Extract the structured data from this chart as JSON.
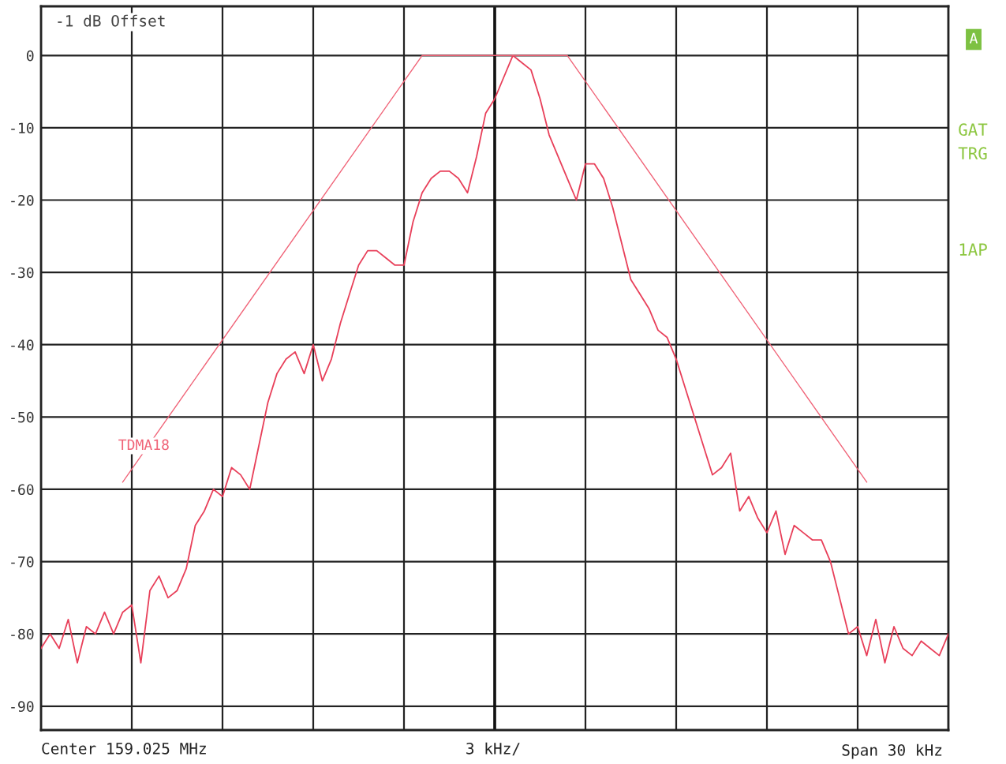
{
  "chart_data": {
    "type": "line",
    "annotations": [
      "-1 dB Offset",
      "A",
      "GAT",
      "TRG",
      "1AP",
      "Center 159.025 MHz",
      "3 kHz/",
      "Span 30 kHz"
    ],
    "categories": [
      null,
      null,
      null,
      null,
      null,
      null,
      null,
      null,
      null,
      null,
      null,
      null,
      null,
      null,
      null,
      null,
      null,
      null,
      null,
      null,
      null,
      null,
      null,
      null,
      null,
      null,
      null,
      null,
      null,
      null,
      null,
      null,
      null,
      null,
      null,
      null,
      null,
      null,
      null,
      null,
      null,
      null,
      null,
      null,
      null,
      null,
      null,
      null,
      null,
      null,
      null,
      null,
      null,
      null,
      null,
      null,
      null,
      null,
      null,
      null,
      null,
      null,
      null,
      null,
      null,
      null,
      null,
      null,
      null,
      null,
      null,
      null,
      null,
      null,
      null,
      null,
      null,
      null,
      null,
      null,
      null,
      null,
      null,
      null,
      null,
      null,
      null,
      null,
      null,
      null,
      null,
      null,
      null,
      null,
      null,
      null,
      null,
      null,
      null,
      null,
      null
    ],
    "series": [
      {
        "color": "#e8405a",
        "values": [
          -82,
          -80,
          -82,
          -78,
          -84,
          -79,
          -80,
          -77,
          -80,
          -77,
          -76,
          -84,
          -74,
          -72,
          -75,
          -74,
          -71,
          -65,
          -63,
          -60,
          -61,
          -57,
          -58,
          -60,
          -54,
          -48,
          -44,
          -42,
          -41,
          -44,
          -40,
          -45,
          -42,
          -37,
          -33,
          -29,
          -27,
          -27,
          -28,
          -29,
          -29,
          -23,
          -19,
          -17,
          -16,
          -16,
          -17,
          -19,
          -14,
          -8,
          -6,
          -3,
          0,
          -1,
          -2,
          -6,
          -11,
          -14,
          -17,
          -20,
          -15,
          -15,
          -17,
          -21,
          -26,
          -31,
          -33,
          -35,
          -38,
          -39,
          -42,
          -46,
          -50,
          -54,
          -58,
          -57,
          -55,
          -63,
          -61,
          -64,
          -66,
          -63,
          -69,
          -65,
          -66,
          -67,
          -67,
          -70,
          -75,
          -80,
          -79,
          -83,
          -78,
          -84,
          -79,
          -82,
          -83,
          -81,
          -82,
          -83,
          -80
        ]
      },
      {
        "name": "TDMA18",
        "color": "#f06478",
        "values": [
          null,
          null,
          null,
          null,
          null,
          null,
          null,
          null,
          null,
          -59,
          null,
          null,
          null,
          null,
          null,
          null,
          null,
          null,
          null,
          null,
          null,
          null,
          null,
          null,
          null,
          null,
          null,
          null,
          null,
          null,
          null,
          null,
          null,
          null,
          null,
          null,
          null,
          null,
          null,
          null,
          null,
          null,
          0,
          null,
          null,
          null,
          null,
          null,
          null,
          null,
          null,
          null,
          null,
          null,
          null,
          null,
          null,
          null,
          0,
          null,
          null,
          null,
          null,
          null,
          null,
          null,
          null,
          null,
          null,
          null,
          null,
          null,
          null,
          null,
          null,
          null,
          null,
          null,
          null,
          null,
          null,
          null,
          null,
          null,
          null,
          null,
          null,
          null,
          null,
          null,
          null,
          -59,
          null,
          null,
          null,
          null,
          null,
          null,
          null,
          null,
          null
        ]
      }
    ],
    "ylim": [
      -93.3,
      6.8
    ],
    "yticks": [
      0,
      -10,
      -20,
      -30,
      -40,
      -50,
      -60,
      -70,
      -80,
      -90
    ],
    "grid": true,
    "legend": false,
    "marker": "none",
    "line_style": "solid"
  }
}
